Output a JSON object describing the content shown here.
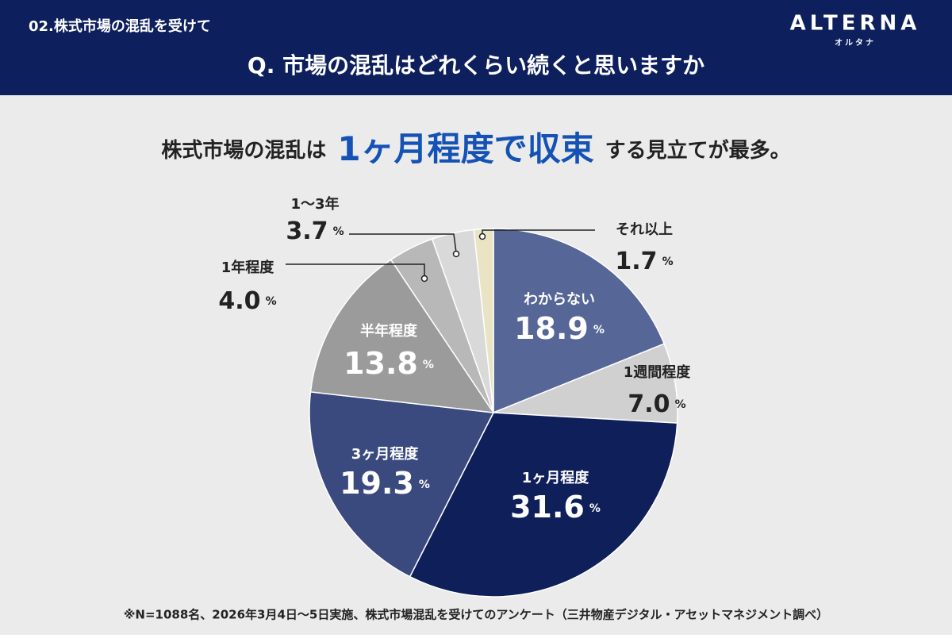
{
  "header": {
    "section": "02.株式市場の混乱を受けて",
    "question": "Q. 市場の混乱はどれくらい続くと思いますか",
    "logo": "ALTERNA",
    "logo_kana": "オルタナ"
  },
  "headline": {
    "before": "株式市場の混乱は",
    "highlight": "1ヶ月程度で収束",
    "after": "する見立てが最多。"
  },
  "chart_data": {
    "type": "pie",
    "categories": [
      "わからない",
      "1週間程度",
      "1ヶ月程度",
      "3ヶ月程度",
      "半年程度",
      "1年程度",
      "1〜3年",
      "それ以上"
    ],
    "values": [
      18.9,
      7.0,
      31.6,
      19.3,
      13.8,
      4.0,
      3.7,
      1.7
    ],
    "value_labels": [
      "18.9",
      "7.0",
      "31.6",
      "19.3",
      "13.8",
      "4.0",
      "3.7",
      "1.7"
    ],
    "unit": "%",
    "colors": [
      "#566697",
      "#d0d0d0",
      "#0e1f5a",
      "#3a4a7e",
      "#9b9b9b",
      "#b8b8b8",
      "#d9d9d9",
      "#e9e4c4"
    ]
  },
  "footnote": "※N=1088名、2026年3月4日〜5日実施、株式市場混乱を受けてのアンケート（三井物産デジタル・アセットマネジメント調べ）"
}
